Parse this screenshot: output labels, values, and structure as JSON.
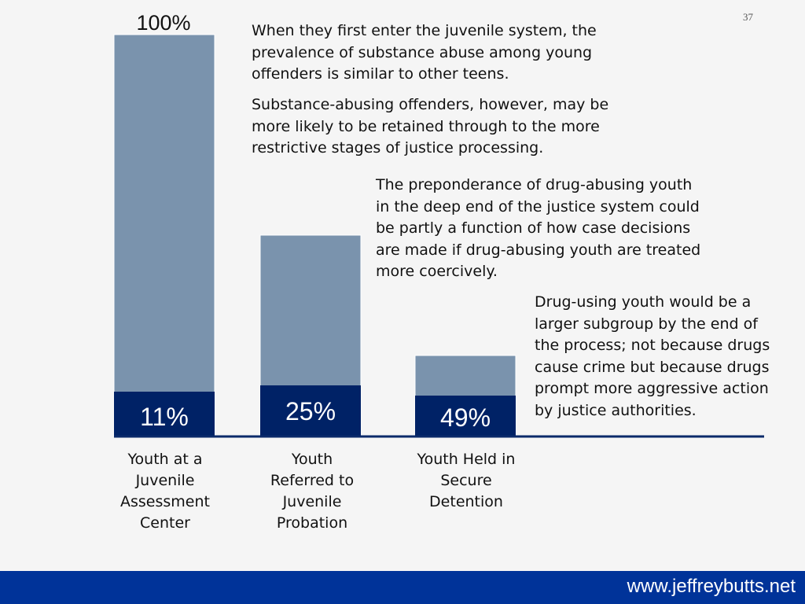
{
  "page_number": "37",
  "text_blocks": [
    "When they first enter the juvenile system, the\nprevalence of substance abuse among young\noffenders is similar to other teens.",
    "Substance-abusing offenders, however, may be\nmore likely to be retained through to the more\nrestrictive stages of justice processing.",
    "The preponderance of drug-abusing youth\nin the deep end of the justice system could\nbe partly a function of how case decisions\nare made if drug-abusing youth are treated\nmore coercively.",
    "Drug-using youth would be a\nlarger subgroup by the end of\nthe process; not because drugs\ncause crime but because drugs\nprompt more aggressive action\nby justice authorities."
  ],
  "footer": {
    "url": "www.jeffreybutts.net"
  },
  "colors": {
    "background": "#f5f5f5",
    "bar_total": "#7a93ad",
    "bar_substance": "#002266",
    "axis": "#0a2a6a",
    "footer": "#003399"
  },
  "chart_data": {
    "type": "bar",
    "stacked": true,
    "categories": [
      "Youth at a Juvenile Assessment Center",
      "Youth Referred to Juvenile Probation",
      "Youth Held in Secure Detention"
    ],
    "category_lines": [
      [
        "Youth at a",
        "Juvenile",
        "Assessment",
        "Center"
      ],
      [
        "Youth",
        "Referred to",
        "Juvenile",
        "Probation"
      ],
      [
        "Youth Held in",
        "Secure",
        "Detention"
      ]
    ],
    "total_values": [
      100,
      50,
      20
    ],
    "substance_abuse_share": [
      11,
      25,
      49
    ],
    "data_labels": [
      "11%",
      "25%",
      "49%"
    ],
    "top_label": "100%",
    "ylim": [
      0,
      100
    ],
    "xlabel": "",
    "ylabel": ""
  }
}
